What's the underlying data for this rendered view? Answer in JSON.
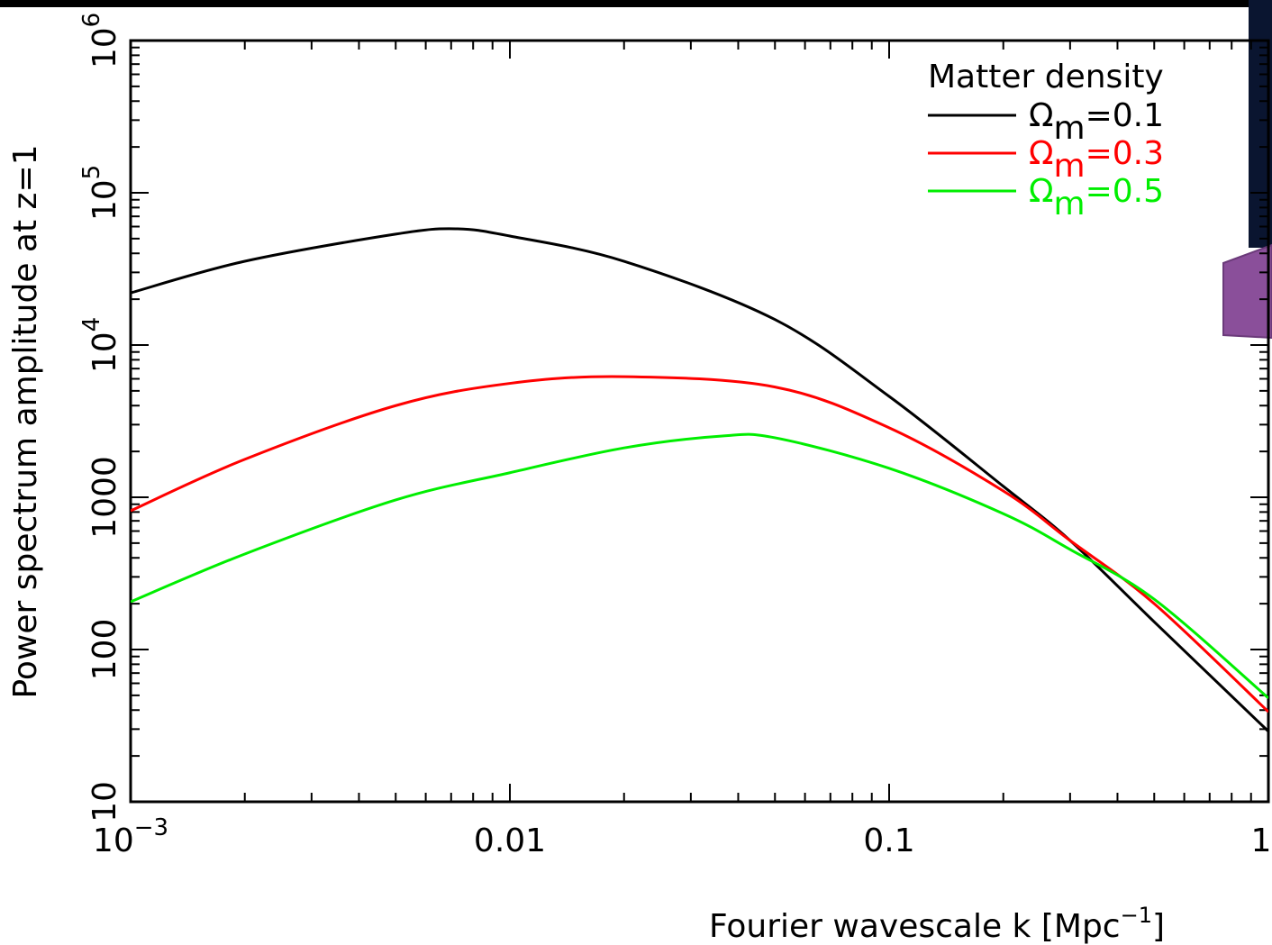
{
  "chart_data": {
    "type": "line",
    "ylabel": "Power spectrum amplitude at z=1",
    "xlabel": [
      "Fourier wavescale k [Mpc",
      "−1",
      "]"
    ],
    "log_x": true,
    "log_y": true,
    "minor_ticks": true,
    "xlim": [
      0.001,
      1
    ],
    "ylim": [
      10,
      1000000
    ],
    "xticks": [
      {
        "value": 0.001,
        "label": "10",
        "exp": "−3"
      },
      0.01,
      0.1,
      1
    ],
    "yticks": [
      10,
      100,
      1000,
      {
        "value": 10000,
        "label": "10",
        "exp": "4"
      },
      {
        "value": 100000,
        "label": "10",
        "exp": "5"
      },
      {
        "value": 1000000,
        "label": "10",
        "exp": "6"
      }
    ],
    "legend_title": "Matter density",
    "legend": "upper right",
    "series": [
      {
        "name": [
          "Ω",
          "m",
          "=0.1"
        ],
        "color": "#000000",
        "x": [
          0.001,
          0.002,
          0.005,
          0.0072,
          0.01,
          0.02,
          0.05,
          0.1,
          0.2,
          0.3,
          0.5,
          1
        ],
        "values": [
          22000,
          35500,
          53500,
          58000,
          52000,
          35500,
          14700,
          4600,
          1180,
          520,
          152,
          29
        ]
      },
      {
        "name": [
          "Ω",
          "m",
          "=0.3"
        ],
        "color": "#ff0000",
        "x": [
          0.001,
          0.002,
          0.005,
          0.01,
          0.02,
          0.05,
          0.1,
          0.2,
          0.3,
          0.5,
          1
        ],
        "values": [
          815,
          1775,
          4000,
          5600,
          6200,
          5300,
          2860,
          1100,
          520,
          200,
          39
        ]
      },
      {
        "name": [
          "Ω",
          "m",
          "=0.5"
        ],
        "color": "#00ee00",
        "x": [
          0.001,
          0.002,
          0.005,
          0.01,
          0.02,
          0.036,
          0.05,
          0.1,
          0.2,
          0.3,
          0.5,
          1
        ],
        "values": [
          206,
          424,
          960,
          1450,
          2110,
          2520,
          2460,
          1550,
          780,
          454,
          214,
          48
        ]
      }
    ]
  }
}
